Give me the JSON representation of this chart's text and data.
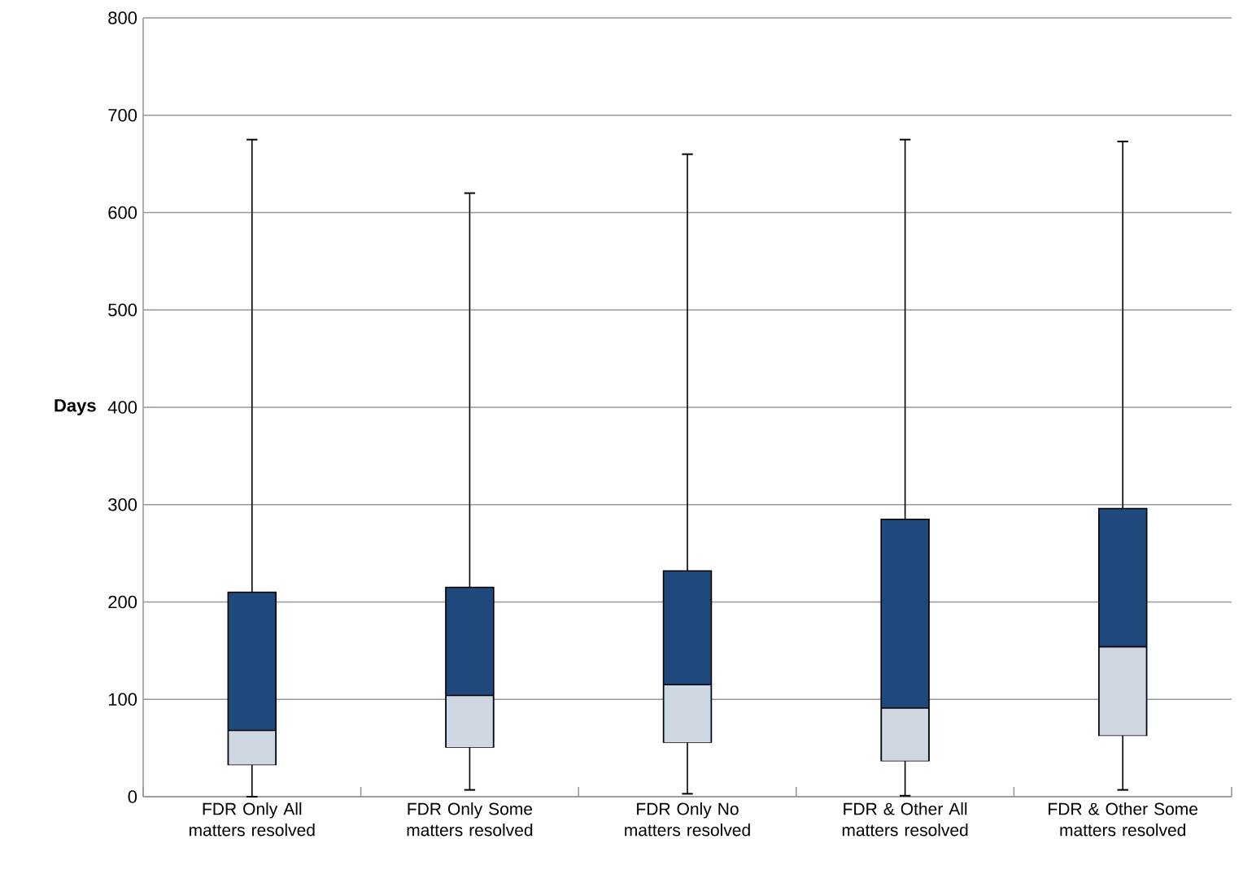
{
  "chart_data": {
    "type": "box",
    "ylabel": "Days",
    "categories": [
      "FDR Only All matters resolved",
      "FDR Only Some matters resolved",
      "FDR Only No matters resolved",
      "FDR & Other All matters resolved",
      "FDR & Other Some matters resolved"
    ],
    "boxes": [
      {
        "low": 0,
        "q1": 33,
        "median": 68,
        "q3": 210,
        "high": 675
      },
      {
        "low": 7,
        "q1": 51,
        "median": 104,
        "q3": 215,
        "high": 620
      },
      {
        "low": 3,
        "q1": 56,
        "median": 115,
        "q3": 232,
        "high": 660
      },
      {
        "low": 1,
        "q1": 37,
        "median": 91,
        "q3": 285,
        "high": 675
      },
      {
        "low": 7,
        "q1": 63,
        "median": 154,
        "q3": 296,
        "high": 673
      }
    ],
    "color": "#1f497d",
    "ylim": [
      0,
      800
    ],
    "yticks": [
      0,
      100,
      200,
      300,
      400,
      500,
      600,
      700,
      800
    ],
    "grid": "y"
  }
}
